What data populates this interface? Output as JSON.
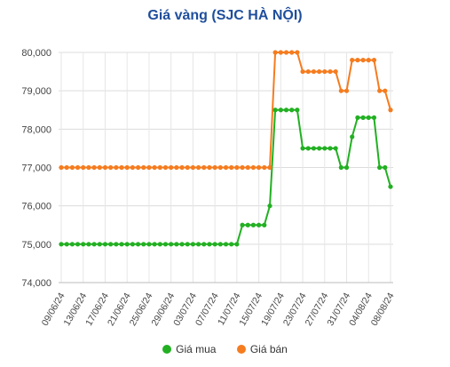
{
  "chart_data": {
    "type": "line",
    "title": "Giá vàng (SJC HÀ NỘI)",
    "xlabel": "",
    "ylabel": "",
    "ylim": [
      74000,
      80000
    ],
    "yticks": [
      "74,000",
      "75,000",
      "76,000",
      "77,000",
      "78,000",
      "79,000",
      "80,000"
    ],
    "ytick_values": [
      74000,
      75000,
      76000,
      77000,
      78000,
      79000,
      80000
    ],
    "xtick_labels": [
      "09/06/24",
      "13/06/24",
      "17/06/24",
      "21/06/24",
      "25/06/24",
      "29/06/24",
      "03/07/24",
      "07/07/24",
      "11/07/24",
      "15/07/24",
      "19/07/24",
      "23/07/24",
      "27/07/24",
      "31/07/24",
      "04/08/24",
      "08/08/24"
    ],
    "x": [
      "09/06/24",
      "10/06/24",
      "11/06/24",
      "12/06/24",
      "13/06/24",
      "14/06/24",
      "15/06/24",
      "16/06/24",
      "17/06/24",
      "18/06/24",
      "19/06/24",
      "20/06/24",
      "21/06/24",
      "22/06/24",
      "23/06/24",
      "24/06/24",
      "25/06/24",
      "26/06/24",
      "27/06/24",
      "28/06/24",
      "29/06/24",
      "30/06/24",
      "01/07/24",
      "02/07/24",
      "03/07/24",
      "04/07/24",
      "05/07/24",
      "06/07/24",
      "07/07/24",
      "08/07/24",
      "09/07/24",
      "10/07/24",
      "11/07/24",
      "12/07/24",
      "13/07/24",
      "14/07/24",
      "15/07/24",
      "16/07/24",
      "17/07/24",
      "18/07/24",
      "19/07/24",
      "20/07/24",
      "21/07/24",
      "22/07/24",
      "23/07/24",
      "24/07/24",
      "25/07/24",
      "26/07/24",
      "27/07/24",
      "28/07/24",
      "29/07/24",
      "30/07/24",
      "31/07/24",
      "01/08/24",
      "02/08/24",
      "03/08/24",
      "04/08/24",
      "05/08/24",
      "06/08/24",
      "07/08/24",
      "08/08/24"
    ],
    "series": [
      {
        "name": "Giá mua",
        "color": "#22b022",
        "values": [
          75000,
          75000,
          75000,
          75000,
          75000,
          75000,
          75000,
          75000,
          75000,
          75000,
          75000,
          75000,
          75000,
          75000,
          75000,
          75000,
          75000,
          75000,
          75000,
          75000,
          75000,
          75000,
          75000,
          75000,
          75000,
          75000,
          75000,
          75000,
          75000,
          75000,
          75000,
          75000,
          75000,
          75500,
          75500,
          75500,
          75500,
          75500,
          76000,
          78500,
          78500,
          78500,
          78500,
          78500,
          77500,
          77500,
          77500,
          77500,
          77500,
          77500,
          77500,
          77000,
          77000,
          77800,
          78300,
          78300,
          78300,
          78300,
          77000,
          77000,
          76500
        ]
      },
      {
        "name": "Giá bán",
        "color": "#f57c1f",
        "values": [
          77000,
          77000,
          77000,
          77000,
          77000,
          77000,
          77000,
          77000,
          77000,
          77000,
          77000,
          77000,
          77000,
          77000,
          77000,
          77000,
          77000,
          77000,
          77000,
          77000,
          77000,
          77000,
          77000,
          77000,
          77000,
          77000,
          77000,
          77000,
          77000,
          77000,
          77000,
          77000,
          77000,
          77000,
          77000,
          77000,
          77000,
          77000,
          77000,
          80000,
          80000,
          80000,
          80000,
          80000,
          79500,
          79500,
          79500,
          79500,
          79500,
          79500,
          79500,
          79000,
          79000,
          79800,
          79800,
          79800,
          79800,
          79800,
          79000,
          79000,
          78500
        ]
      }
    ],
    "legend_position": "bottom",
    "grid": true
  }
}
